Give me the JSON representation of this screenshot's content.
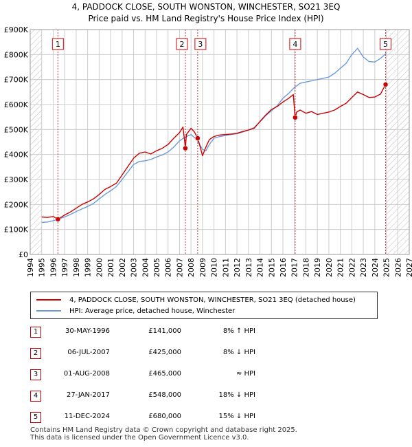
{
  "title": "4, PADDOCK CLOSE, SOUTH WONSTON, WINCHESTER, SO21 3EQ",
  "subtitle": "Price paid vs. HM Land Registry's House Price Index (HPI)",
  "colors": {
    "property": "#cc0000",
    "hpi": "#6a9bd8",
    "marker": "#cc0000",
    "grid": "#cccccc",
    "future_hatch": "#bbbbbb"
  },
  "chart_data": {
    "type": "line",
    "title": "4, PADDOCK CLOSE, SOUTH WONSTON, WINCHESTER, SO21 3EQ",
    "subtitle": "Price paid vs. HM Land Registry's House Price Index (HPI)",
    "xlim": [
      1994,
      2027
    ],
    "ylim": [
      0,
      900000
    ],
    "x_ticks": [
      "1994",
      "1995",
      "1996",
      "1997",
      "1998",
      "1999",
      "2000",
      "2001",
      "2002",
      "2003",
      "2004",
      "2005",
      "2006",
      "2007",
      "2008",
      "2009",
      "2010",
      "2011",
      "2012",
      "2013",
      "2014",
      "2015",
      "2016",
      "2017",
      "2018",
      "2019",
      "2020",
      "2021",
      "2022",
      "2023",
      "2024",
      "2025",
      "2026",
      "2027"
    ],
    "y_ticks": [
      {
        "value": 0,
        "label": "£0"
      },
      {
        "value": 100000,
        "label": "£100K"
      },
      {
        "value": 200000,
        "label": "£200K"
      },
      {
        "value": 300000,
        "label": "£300K"
      },
      {
        "value": 400000,
        "label": "£400K"
      },
      {
        "value": 500000,
        "label": "£500K"
      },
      {
        "value": 600000,
        "label": "£600K"
      },
      {
        "value": 700000,
        "label": "£700K"
      },
      {
        "value": 800000,
        "label": "£800K"
      },
      {
        "value": 900000,
        "label": "£900K"
      }
    ],
    "hatch_regions": [
      [
        1994,
        1995.0
      ],
      [
        2025.0,
        2027
      ]
    ],
    "series": [
      {
        "name": "4, PADDOCK CLOSE, SOUTH WONSTON, WINCHESTER, SO21 3EQ (detached house)",
        "color": "#cc0000",
        "x": [
          1995.0,
          1995.5,
          1996.0,
          1996.41,
          1997.0,
          1997.5,
          1998.0,
          1998.5,
          1999.0,
          1999.5,
          2000.0,
          2000.5,
          2001.0,
          2001.5,
          2002.0,
          2002.5,
          2003.0,
          2003.5,
          2004.0,
          2004.5,
          2005.0,
          2005.5,
          2006.0,
          2006.5,
          2007.0,
          2007.3,
          2007.51,
          2007.6,
          2008.0,
          2008.3,
          2008.58,
          2008.8,
          2009.0,
          2009.3,
          2009.6,
          2010.0,
          2010.5,
          2011.0,
          2011.5,
          2012.0,
          2012.5,
          2013.0,
          2013.5,
          2014.0,
          2014.5,
          2015.0,
          2015.5,
          2016.0,
          2016.5,
          2016.9,
          2017.07,
          2017.2,
          2017.5,
          2018.0,
          2018.5,
          2019.0,
          2019.5,
          2020.0,
          2020.5,
          2021.0,
          2021.5,
          2022.0,
          2022.5,
          2023.0,
          2023.5,
          2024.0,
          2024.5,
          2024.94,
          2025.0
        ],
        "values": [
          150000,
          148000,
          152000,
          141000,
          158000,
          170000,
          185000,
          200000,
          210000,
          222000,
          240000,
          260000,
          272000,
          285000,
          318000,
          352000,
          385000,
          405000,
          410000,
          402000,
          415000,
          425000,
          440000,
          465000,
          488000,
          510000,
          425000,
          480000,
          505000,
          490000,
          465000,
          430000,
          395000,
          430000,
          460000,
          472000,
          478000,
          480000,
          482000,
          485000,
          492000,
          498000,
          505000,
          532000,
          558000,
          580000,
          592000,
          610000,
          625000,
          640000,
          548000,
          570000,
          578000,
          565000,
          572000,
          560000,
          565000,
          570000,
          578000,
          592000,
          605000,
          628000,
          650000,
          640000,
          628000,
          630000,
          642000,
          680000,
          690000
        ]
      },
      {
        "name": "HPI: Average price, detached house, Winchester",
        "color": "#6a9bd8",
        "x": [
          1995.0,
          1995.5,
          1996.0,
          1996.5,
          1997.0,
          1997.5,
          1998.0,
          1998.5,
          1999.0,
          1999.5,
          2000.0,
          2000.5,
          2001.0,
          2001.5,
          2002.0,
          2002.5,
          2003.0,
          2003.5,
          2004.0,
          2004.5,
          2005.0,
          2005.5,
          2006.0,
          2006.5,
          2007.0,
          2007.5,
          2008.0,
          2008.5,
          2009.0,
          2009.3,
          2009.6,
          2010.0,
          2010.5,
          2011.0,
          2011.5,
          2012.0,
          2012.5,
          2013.0,
          2013.5,
          2014.0,
          2014.5,
          2015.0,
          2015.5,
          2016.0,
          2016.5,
          2017.0,
          2017.5,
          2018.0,
          2018.5,
          2019.0,
          2019.5,
          2020.0,
          2020.5,
          2021.0,
          2021.5,
          2022.0,
          2022.5,
          2023.0,
          2023.5,
          2024.0,
          2024.5,
          2025.0
        ],
        "values": [
          128000,
          130000,
          135000,
          142000,
          150000,
          160000,
          172000,
          182000,
          192000,
          204000,
          222000,
          240000,
          255000,
          272000,
          300000,
          330000,
          360000,
          372000,
          375000,
          380000,
          390000,
          398000,
          410000,
          430000,
          455000,
          470000,
          480000,
          460000,
          420000,
          415000,
          440000,
          465000,
          472000,
          476000,
          480000,
          483000,
          490000,
          498000,
          508000,
          530000,
          555000,
          575000,
          595000,
          625000,
          645000,
          668000,
          685000,
          690000,
          695000,
          700000,
          705000,
          710000,
          725000,
          745000,
          765000,
          800000,
          825000,
          790000,
          772000,
          770000,
          785000,
          805000
        ]
      }
    ],
    "sales": [
      {
        "num": "1",
        "x": 1996.41,
        "y": 141000
      },
      {
        "num": "2",
        "x": 2007.51,
        "y": 425000
      },
      {
        "num": "3",
        "x": 2008.58,
        "y": 465000
      },
      {
        "num": "4",
        "x": 2017.07,
        "y": 548000
      },
      {
        "num": "5",
        "x": 2024.94,
        "y": 680000
      }
    ]
  },
  "legend": {
    "property_label": "4, PADDOCK CLOSE, SOUTH WONSTON, WINCHESTER, SO21 3EQ (detached house)",
    "hpi_label": "HPI: Average price, detached house, Winchester"
  },
  "sales_table": [
    {
      "num": "1",
      "date": "30-MAY-1996",
      "price": "£141,000",
      "hpi": "8% ↑ HPI"
    },
    {
      "num": "2",
      "date": "06-JUL-2007",
      "price": "£425,000",
      "hpi": "8% ↓ HPI"
    },
    {
      "num": "3",
      "date": "01-AUG-2008",
      "price": "£465,000",
      "hpi": "≈ HPI"
    },
    {
      "num": "4",
      "date": "27-JAN-2017",
      "price": "£548,000",
      "hpi": "18% ↓ HPI"
    },
    {
      "num": "5",
      "date": "11-DEC-2024",
      "price": "£680,000",
      "hpi": "15% ↓ HPI"
    }
  ],
  "footer": {
    "line1": "Contains HM Land Registry data © Crown copyright and database right 2025.",
    "line2": "This data is licensed under the Open Government Licence v3.0."
  }
}
